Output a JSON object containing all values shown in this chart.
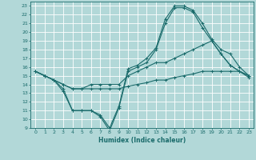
{
  "xlabel": "Humidex (Indice chaleur)",
  "bg_color": "#b2d8d8",
  "grid_color": "#ffffff",
  "line_color": "#1a6b6b",
  "xlim": [
    -0.5,
    23.5
  ],
  "ylim": [
    9,
    23.5
  ],
  "xticks": [
    0,
    1,
    2,
    3,
    4,
    5,
    6,
    7,
    8,
    9,
    10,
    11,
    12,
    13,
    14,
    15,
    16,
    17,
    18,
    19,
    20,
    21,
    22,
    23
  ],
  "yticks": [
    9,
    10,
    11,
    12,
    13,
    14,
    15,
    16,
    17,
    18,
    19,
    20,
    21,
    22,
    23
  ],
  "line1_x": [
    0,
    1,
    2,
    3,
    4,
    5,
    6,
    7,
    8,
    9,
    10,
    11,
    12,
    13,
    14,
    15,
    16,
    17,
    18,
    19,
    20,
    21,
    22,
    23
  ],
  "line1_y": [
    15.5,
    15.0,
    14.5,
    13.2,
    11.0,
    11.0,
    11.0,
    10.3,
    8.7,
    11.3,
    15.5,
    16.0,
    16.5,
    18.0,
    21.0,
    22.8,
    22.8,
    22.3,
    20.5,
    19.0,
    17.5,
    16.2,
    15.5,
    14.8
  ],
  "line2_x": [
    0,
    1,
    2,
    3,
    4,
    5,
    6,
    7,
    8,
    9,
    10,
    11,
    12,
    13,
    14,
    15,
    16,
    17,
    18,
    19,
    20,
    21,
    22,
    23
  ],
  "line2_y": [
    15.5,
    15.0,
    14.5,
    13.5,
    11.0,
    11.0,
    11.0,
    10.5,
    9.0,
    11.5,
    15.8,
    16.2,
    17.0,
    18.2,
    21.5,
    23.0,
    23.0,
    22.5,
    21.0,
    19.2,
    18.0,
    17.5,
    16.0,
    15.0
  ],
  "line3_x": [
    0,
    1,
    2,
    3,
    4,
    5,
    6,
    7,
    8,
    9,
    10,
    11,
    12,
    13,
    14,
    15,
    16,
    17,
    18,
    19,
    20,
    21,
    22,
    23
  ],
  "line3_y": [
    15.5,
    15.0,
    14.5,
    14.0,
    13.5,
    13.5,
    14.0,
    14.0,
    14.0,
    14.0,
    15.0,
    15.5,
    16.0,
    16.5,
    16.5,
    17.0,
    17.5,
    18.0,
    18.5,
    19.0,
    17.5,
    16.2,
    15.5,
    15.0
  ],
  "line4_x": [
    0,
    1,
    2,
    3,
    4,
    5,
    6,
    7,
    8,
    9,
    10,
    11,
    12,
    13,
    14,
    15,
    16,
    17,
    18,
    19,
    20,
    21,
    22,
    23
  ],
  "line4_y": [
    15.5,
    15.0,
    14.5,
    14.0,
    13.5,
    13.5,
    13.5,
    13.5,
    13.5,
    13.5,
    13.8,
    14.0,
    14.2,
    14.5,
    14.5,
    14.8,
    15.0,
    15.2,
    15.5,
    15.5,
    15.5,
    15.5,
    15.5,
    15.0
  ]
}
